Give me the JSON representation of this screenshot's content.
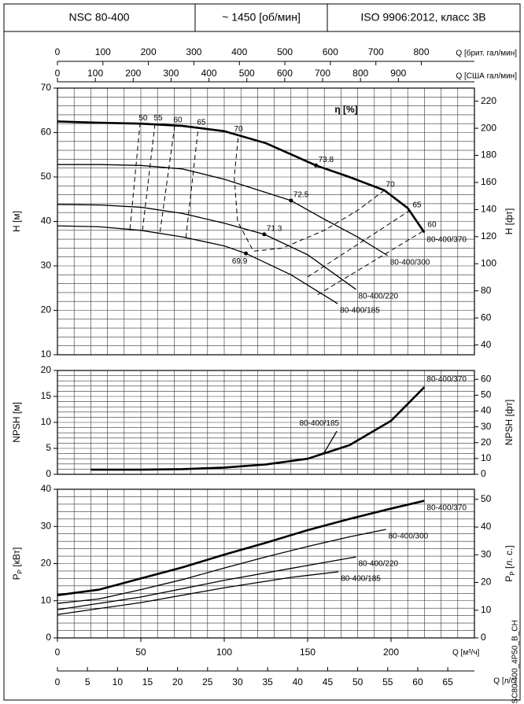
{
  "header": {
    "model": "NSC 80-400",
    "speed": "~ 1450 [об/мин]",
    "standard": "ISO 9906:2012, класс 3B"
  },
  "code": "NSC80-400_4P50_B_CH",
  "chart_data": [
    {
      "type": "line",
      "y_label": "H [м]",
      "y2_label": "H [фт]",
      "xlim": [
        0,
        250
      ],
      "ylim": [
        10,
        70
      ],
      "yticks": [
        10,
        20,
        30,
        40,
        50,
        60,
        70
      ],
      "y2lim": [
        32.81,
        229.66
      ],
      "y2ticks": [
        40,
        60,
        80,
        100,
        120,
        140,
        160,
        180,
        200,
        220
      ],
      "x2_label": "Q [брит. гал/мин]",
      "x2lim": [
        0,
        916.7
      ],
      "x2ticks": [
        0,
        100,
        200,
        300,
        400,
        500,
        600,
        700,
        800
      ],
      "x3_label": "Q [США гал/мин]",
      "x3lim": [
        0,
        1100.8
      ],
      "x3ticks": [
        0,
        100,
        200,
        300,
        400,
        500,
        600,
        700,
        800,
        900
      ],
      "grid": true,
      "xgrid_step": 10,
      "ygrid_step": 2,
      "series": [
        {
          "name": "80-400/370",
          "color": "#000000",
          "x": [
            0,
            25,
            50,
            75,
            100,
            125,
            155,
            175,
            196,
            210,
            220
          ],
          "values": [
            62.5,
            62.2,
            62,
            61.5,
            60.3,
            57.6,
            52.6,
            50,
            47,
            43,
            37.5
          ]
        },
        {
          "name": "80-400/300",
          "color": "#000000",
          "x": [
            0,
            25,
            50,
            75,
            100,
            125,
            140,
            160,
            180,
            198
          ],
          "values": [
            52.8,
            52.8,
            52.6,
            51.8,
            49.5,
            46.5,
            44.7,
            40.5,
            36.5,
            32.3
          ]
        },
        {
          "name": "80-400/220",
          "color": "#000000",
          "x": [
            0,
            25,
            50,
            75,
            100,
            124,
            150,
            179
          ],
          "values": [
            43.8,
            43.7,
            43.2,
            41.8,
            39.6,
            37.1,
            32.5,
            24.7
          ]
        },
        {
          "name": "80-400/185",
          "color": "#000000",
          "x": [
            0,
            25,
            50,
            75,
            100,
            113,
            140,
            168
          ],
          "values": [
            39,
            38.8,
            38,
            36.5,
            34.5,
            32.8,
            28,
            21.5
          ]
        }
      ],
      "efficiency_label": "η [%]",
      "efficiency_lines": [
        {
          "eta": 50,
          "labels_at": "last",
          "x": [
            43.5,
            49.5
          ],
          "values": [
            38.3,
            62
          ]
        },
        {
          "eta": 55,
          "labels_at": "last",
          "x": [
            51,
            58.5
          ],
          "values": [
            38,
            62
          ]
        },
        {
          "eta": 60,
          "labels_at": "last",
          "x": [
            61.5,
            70.3
          ],
          "values": [
            37.6,
            61.5
          ]
        },
        {
          "eta": 65,
          "labels_at": "last",
          "x": [
            77,
            84.4
          ],
          "values": [
            36.3,
            61
          ]
        },
        {
          "eta": 70,
          "labels_at": "both",
          "x": [
            196,
            180,
            160,
            135,
            117.5,
            108,
            106,
            108.5
          ],
          "values": [
            47,
            42.5,
            38,
            34,
            33.3,
            40,
            50,
            59.5
          ]
        },
        {
          "eta": 65,
          "labels_at": "last",
          "x": [
            150,
            211
          ],
          "values": [
            27.5,
            42.4
          ]
        },
        {
          "eta": 60,
          "labels_at": "last",
          "x": [
            156,
            220
          ],
          "values": [
            23.5,
            38
          ]
        }
      ],
      "bep": {
        "x": [
          155,
          140,
          124,
          113
        ],
        "values": [
          52.6,
          44.7,
          37.1,
          32.8
        ],
        "labels": [
          73.8,
          72.5,
          71.3,
          69.9
        ]
      }
    },
    {
      "type": "line",
      "y_label": "NPSH [м]",
      "y2_label": "NPSH [фт]",
      "xlim": [
        0,
        250
      ],
      "ylim": [
        0,
        20
      ],
      "yticks": [
        0,
        5,
        10,
        15,
        20
      ],
      "y2lim": [
        0,
        65.62
      ],
      "y2ticks": [
        0,
        10,
        20,
        30,
        40,
        50,
        60
      ],
      "grid": true,
      "xgrid_step": 10,
      "ygrid_step": 1,
      "series": [
        {
          "name": "80-400/370",
          "color": "#000000",
          "x": [
            20,
            50,
            75,
            100,
            125,
            150,
            175,
            200,
            220
          ],
          "values": [
            0.9,
            0.9,
            1.0,
            1.3,
            1.9,
            3.0,
            5.6,
            10.3,
            16.8
          ]
        },
        {
          "name": "80-400/185",
          "color": "#000000",
          "x": [
            150,
            160,
            167.5
          ],
          "values": [
            3.0,
            4.2,
            8.3
          ]
        }
      ]
    },
    {
      "type": "line",
      "y_label": {
        "symbol": "P",
        "sub": "P",
        "unit": " [кВт]"
      },
      "y2_label": {
        "symbol": "P",
        "sub": "P",
        "unit": " [л. с.]"
      },
      "xlim": [
        0,
        250
      ],
      "ylim": [
        0,
        40
      ],
      "yticks": [
        0,
        10,
        20,
        30,
        40
      ],
      "y2lim": [
        0,
        53.64
      ],
      "y2ticks": [
        0,
        10,
        20,
        30,
        40,
        50
      ],
      "x_label": "Q [м³/ч]",
      "xticks": [
        0,
        50,
        100,
        150,
        200
      ],
      "x2_label": "Q [л/с]",
      "x2lim": [
        0,
        69.44
      ],
      "x2ticks": [
        0,
        5,
        10,
        15,
        20,
        25,
        30,
        35,
        40,
        45,
        50,
        55,
        60,
        65
      ],
      "grid": true,
      "xgrid_step": 10,
      "ygrid_step": 2,
      "series": [
        {
          "name": "80-400/370",
          "color": "#000000",
          "x": [
            0,
            25,
            50,
            75,
            100,
            125,
            150,
            175,
            200,
            220
          ],
          "values": [
            11.5,
            13,
            16,
            19,
            22.4,
            25.6,
            29,
            32,
            34.8,
            36.9
          ]
        },
        {
          "name": "80-400/300",
          "color": "#000000",
          "x": [
            0,
            25,
            50,
            75,
            100,
            125,
            150,
            175,
            197
          ],
          "values": [
            9.3,
            10.5,
            13,
            15.7,
            18.8,
            21.8,
            24.6,
            27.2,
            29.2
          ]
        },
        {
          "name": "80-400/220",
          "color": "#000000",
          "x": [
            0,
            50,
            100,
            150,
            179
          ],
          "values": [
            7.6,
            11,
            15.5,
            19.5,
            21.8
          ]
        },
        {
          "name": "80-400/185",
          "color": "#000000",
          "x": [
            0,
            50,
            100,
            140,
            168.5
          ],
          "values": [
            6.3,
            9.5,
            13.5,
            16.3,
            17.8
          ]
        }
      ]
    }
  ]
}
